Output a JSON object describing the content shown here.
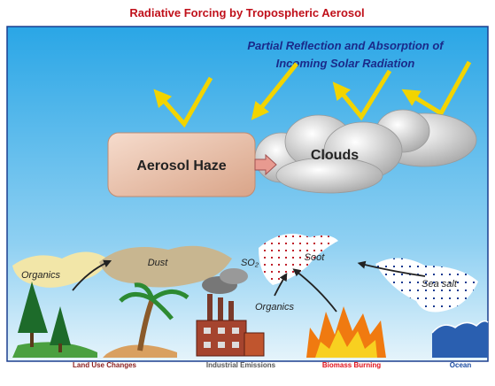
{
  "title": "Radiative Forcing by Tropospheric Aerosol",
  "sky": {
    "caption": [
      "Partial Reflection and Absorption of",
      "Incoming Solar Radiation"
    ],
    "haze": "Aerosol Haze",
    "clouds": "Clouds"
  },
  "aerosols": [
    "Organics",
    "Dust",
    "SO₂",
    "Soot",
    "Organics",
    "Sea salt"
  ],
  "sources": [
    "Land Use Changes",
    "Industrial Emissions",
    "Biomass Burning",
    "Ocean"
  ]
}
